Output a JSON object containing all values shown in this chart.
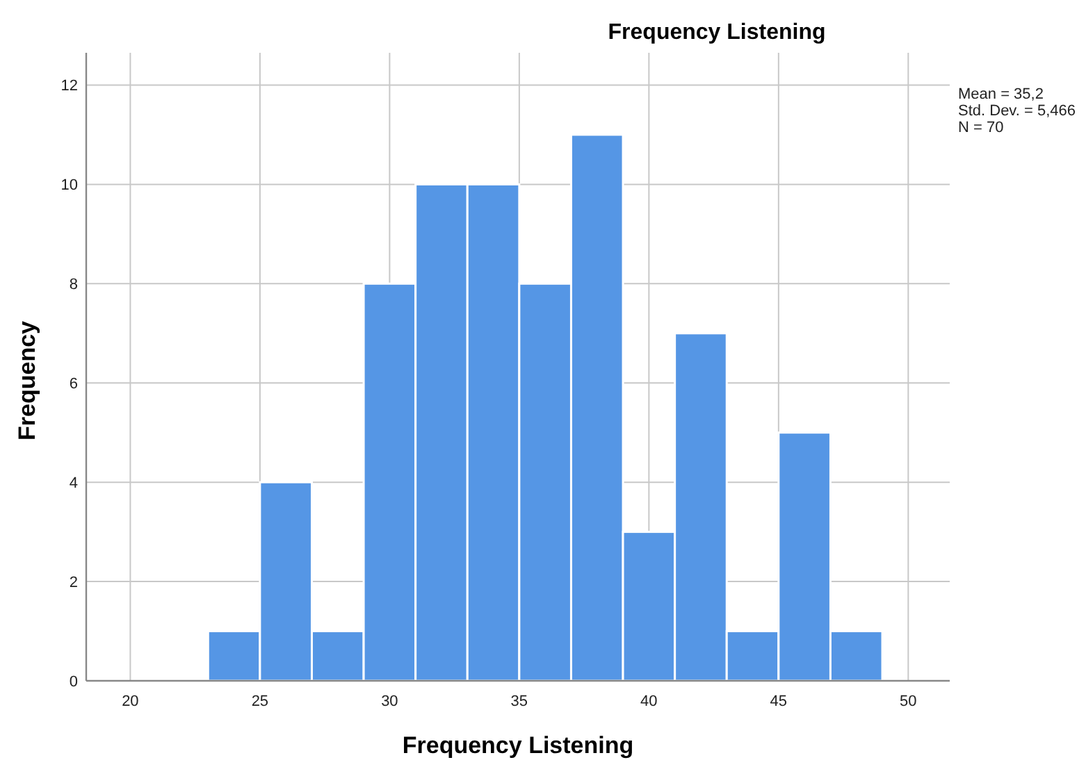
{
  "chart_data": {
    "type": "histogram",
    "title": "Frequency Listening",
    "xlabel": "Frequency Listening",
    "ylabel": "Frequency",
    "bins": [
      23,
      25,
      27,
      29,
      31,
      33,
      35,
      37,
      39,
      41,
      43,
      45,
      47,
      49
    ],
    "values": [
      1,
      4,
      1,
      8,
      10,
      10,
      8,
      11,
      3,
      7,
      1,
      5,
      1
    ],
    "color": "#5596e5",
    "xlim": [
      18.3,
      51.6
    ],
    "xticks": [
      20,
      25,
      30,
      35,
      40,
      45,
      50
    ],
    "ylim": [
      0,
      12.65
    ],
    "yticks": [
      0,
      2,
      4,
      6,
      8,
      10,
      12
    ],
    "grid": true,
    "annotations": [
      "Mean = 35,2",
      "Std. Dev. = 5,466",
      "N = 70"
    ]
  }
}
